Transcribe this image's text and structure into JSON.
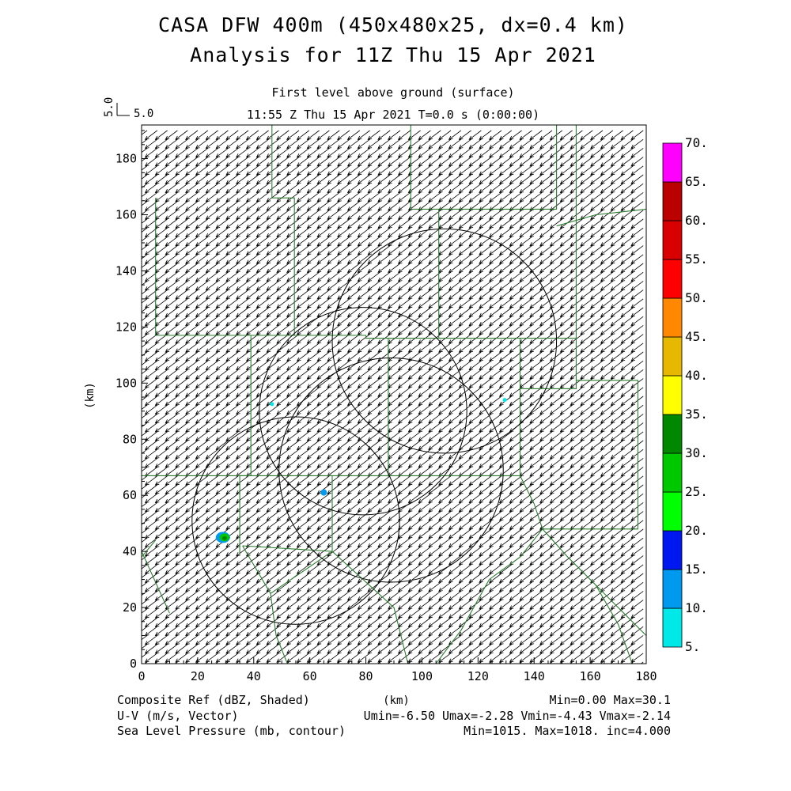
{
  "title_line1": "CASA DFW 400m (450x480x25, dx=0.4 km)",
  "title_line2": "Analysis for 11Z Thu 15 Apr 2021",
  "subtitle_line1": "First level above ground (surface)",
  "subtitle_line2": "11:55 Z Thu 15 Apr 2021   T=0.0 s (0:00:00)",
  "ref_vector": {
    "axis_label": "5.0",
    "label": "5.0"
  },
  "footer": {
    "left": [
      "Composite Ref (dBZ, Shaded)",
      "U-V (m/s, Vector)",
      "Sea Level Pressure (mb, contour)"
    ],
    "xunit": "(km)",
    "right": [
      "Min=0.00 Max=30.1",
      "Umin=-6.50 Umax=-2.28 Vmin=-4.43 Vmax=-2.14",
      "Min=1015. Max=1018. inc=4.000"
    ]
  },
  "colorbar": {
    "labels": [
      "5.",
      "10.",
      "15.",
      "20.",
      "25.",
      "30.",
      "35.",
      "40.",
      "45.",
      "50.",
      "55.",
      "60.",
      "65.",
      "70."
    ],
    "colors": [
      "#00e8e8",
      "#0099f0",
      "#0018f0",
      "#00ff00",
      "#00c800",
      "#008800",
      "#ffff00",
      "#e6b800",
      "#ff8800",
      "#ff0000",
      "#d80000",
      "#bb0000",
      "#ff00ff"
    ]
  },
  "chart_data": {
    "type": "map",
    "xlabel": "(km)",
    "ylabel": "(km)",
    "xlim": [
      0,
      180
    ],
    "ylim": [
      0,
      192
    ],
    "xticks": [
      0,
      20,
      40,
      60,
      80,
      100,
      120,
      140,
      160,
      180
    ],
    "yticks": [
      0,
      20,
      40,
      60,
      80,
      100,
      120,
      140,
      160,
      180
    ],
    "wind_vector_component_ranges": {
      "u": [
        -6.5,
        -2.28
      ],
      "v": [
        -4.43,
        -2.14
      ]
    },
    "reflectivity_range_dbz": [
      0.0,
      30.1
    ],
    "pressure_range_mb": [
      1015,
      1018
    ],
    "contour_increment_mb": 4.0,
    "range_rings_km": [
      {
        "cx": 108,
        "cy": 115,
        "r": 40
      },
      {
        "cx": 79,
        "cy": 90,
        "r": 37
      },
      {
        "cx": 55,
        "cy": 51,
        "r": 37
      },
      {
        "cx": 89,
        "cy": 69,
        "r": 40
      }
    ],
    "echoes_km": [
      {
        "x": 29,
        "y": 45,
        "dbz": 30
      },
      {
        "x": 65,
        "y": 61,
        "dbz": 12
      },
      {
        "x": 46.5,
        "y": 92.5,
        "dbz": 7
      },
      {
        "x": 129.5,
        "y": 94,
        "dbz": 7
      }
    ],
    "boundaries_km": [
      [
        [
          46.5,
          192
        ],
        [
          46.5,
          166
        ],
        [
          54.5,
          166
        ],
        [
          54.5,
          117
        ],
        [
          80,
          117
        ],
        [
          80,
          116
        ],
        [
          130,
          116
        ],
        [
          155,
          116
        ],
        [
          155,
          192
        ]
      ],
      [
        [
          5,
          166
        ],
        [
          5,
          117
        ],
        [
          54.5,
          117
        ]
      ],
      [
        [
          96,
          192
        ],
        [
          96,
          162
        ],
        [
          106,
          162
        ],
        [
          106,
          116
        ]
      ],
      [
        [
          106,
          162
        ],
        [
          148,
          162
        ],
        [
          148,
          192
        ]
      ],
      [
        [
          148,
          156
        ],
        [
          162,
          160
        ],
        [
          180,
          162
        ]
      ],
      [
        [
          39,
          117
        ],
        [
          39,
          67
        ],
        [
          35,
          67
        ],
        [
          35,
          39
        ]
      ],
      [
        [
          0,
          67
        ],
        [
          39,
          67
        ],
        [
          68,
          67
        ],
        [
          90,
          67
        ],
        [
          135,
          67
        ],
        [
          135,
          116
        ]
      ],
      [
        [
          88,
          116
        ],
        [
          88,
          67
        ]
      ],
      [
        [
          68,
          67
        ],
        [
          68,
          40
        ],
        [
          36,
          42
        ]
      ],
      [
        [
          135,
          98
        ],
        [
          155,
          98
        ],
        [
          155,
          116
        ]
      ],
      [
        [
          155,
          101
        ],
        [
          177,
          101
        ],
        [
          177,
          48
        ],
        [
          143,
          48
        ]
      ],
      [
        [
          135,
          67
        ],
        [
          140,
          57
        ],
        [
          143,
          48
        ],
        [
          152,
          38
        ],
        [
          162,
          28
        ],
        [
          172,
          18
        ],
        [
          180,
          10
        ]
      ],
      [
        [
          5,
          44
        ],
        [
          0,
          38
        ]
      ],
      [
        [
          0,
          40
        ],
        [
          10,
          18
        ]
      ],
      [
        [
          36,
          42
        ],
        [
          46,
          25
        ],
        [
          68,
          40
        ],
        [
          90,
          20
        ],
        [
          95,
          0
        ]
      ],
      [
        [
          105,
          0
        ],
        [
          114,
          12
        ],
        [
          124,
          30
        ],
        [
          135,
          38
        ],
        [
          143,
          48
        ]
      ],
      [
        [
          46,
          25
        ],
        [
          48,
          10
        ],
        [
          52,
          0
        ]
      ],
      [
        [
          162,
          28
        ],
        [
          170,
          14
        ],
        [
          175,
          0
        ]
      ]
    ]
  }
}
